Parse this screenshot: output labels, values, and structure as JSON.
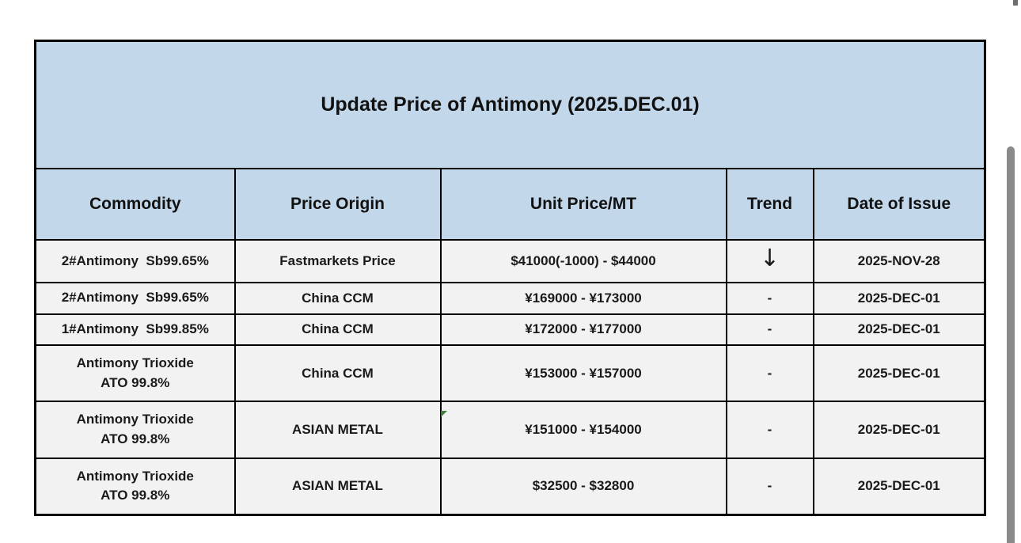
{
  "page": {
    "background": "#ffffff"
  },
  "table": {
    "title": "Update Price of Antimony (2025.DEC.01)",
    "header_bg": "#c3d7ea",
    "row_bg": "#f2f2f2",
    "border_color": "#000000",
    "columns": [
      "Commodity",
      "Price Origin",
      "Unit Price/MT",
      "Trend",
      "Date of Issue"
    ],
    "trend_down_glyph": "↓",
    "rows": [
      {
        "commodity": "2#Antimony  Sb99.65%",
        "origin": "Fastmarkets Price",
        "price": "$41000(-1000) - $44000",
        "trend": "↓",
        "date": "2025-NOV-28"
      },
      {
        "commodity": "2#Antimony  Sb99.65%",
        "origin": "China CCM",
        "price": "¥169000 - ¥173000",
        "trend": "-",
        "date": "2025-DEC-01"
      },
      {
        "commodity": "1#Antimony  Sb99.85%",
        "origin": "China CCM",
        "price": "¥172000 - ¥177000",
        "trend": "-",
        "date": "2025-DEC-01"
      },
      {
        "commodity": "Antimony Trioxide\nATO 99.8%",
        "origin": "China CCM",
        "price": "¥153000 - ¥157000",
        "trend": "-",
        "date": "2025-DEC-01"
      },
      {
        "commodity": "Antimony Trioxide\nATO 99.8%",
        "origin": "ASIAN METAL",
        "price": "¥151000 - ¥154000",
        "trend": "-",
        "date": "2025-DEC-01"
      },
      {
        "commodity": "Antimony Trioxide\nATO 99.8%",
        "origin": "ASIAN METAL",
        "price": "$32500 - $32800",
        "trend": "-",
        "date": "2025-DEC-01"
      }
    ]
  },
  "scrollbar": {
    "color": "#8a8a8a"
  },
  "markers": {
    "comment_triangle_color": "#3f7d3a"
  }
}
